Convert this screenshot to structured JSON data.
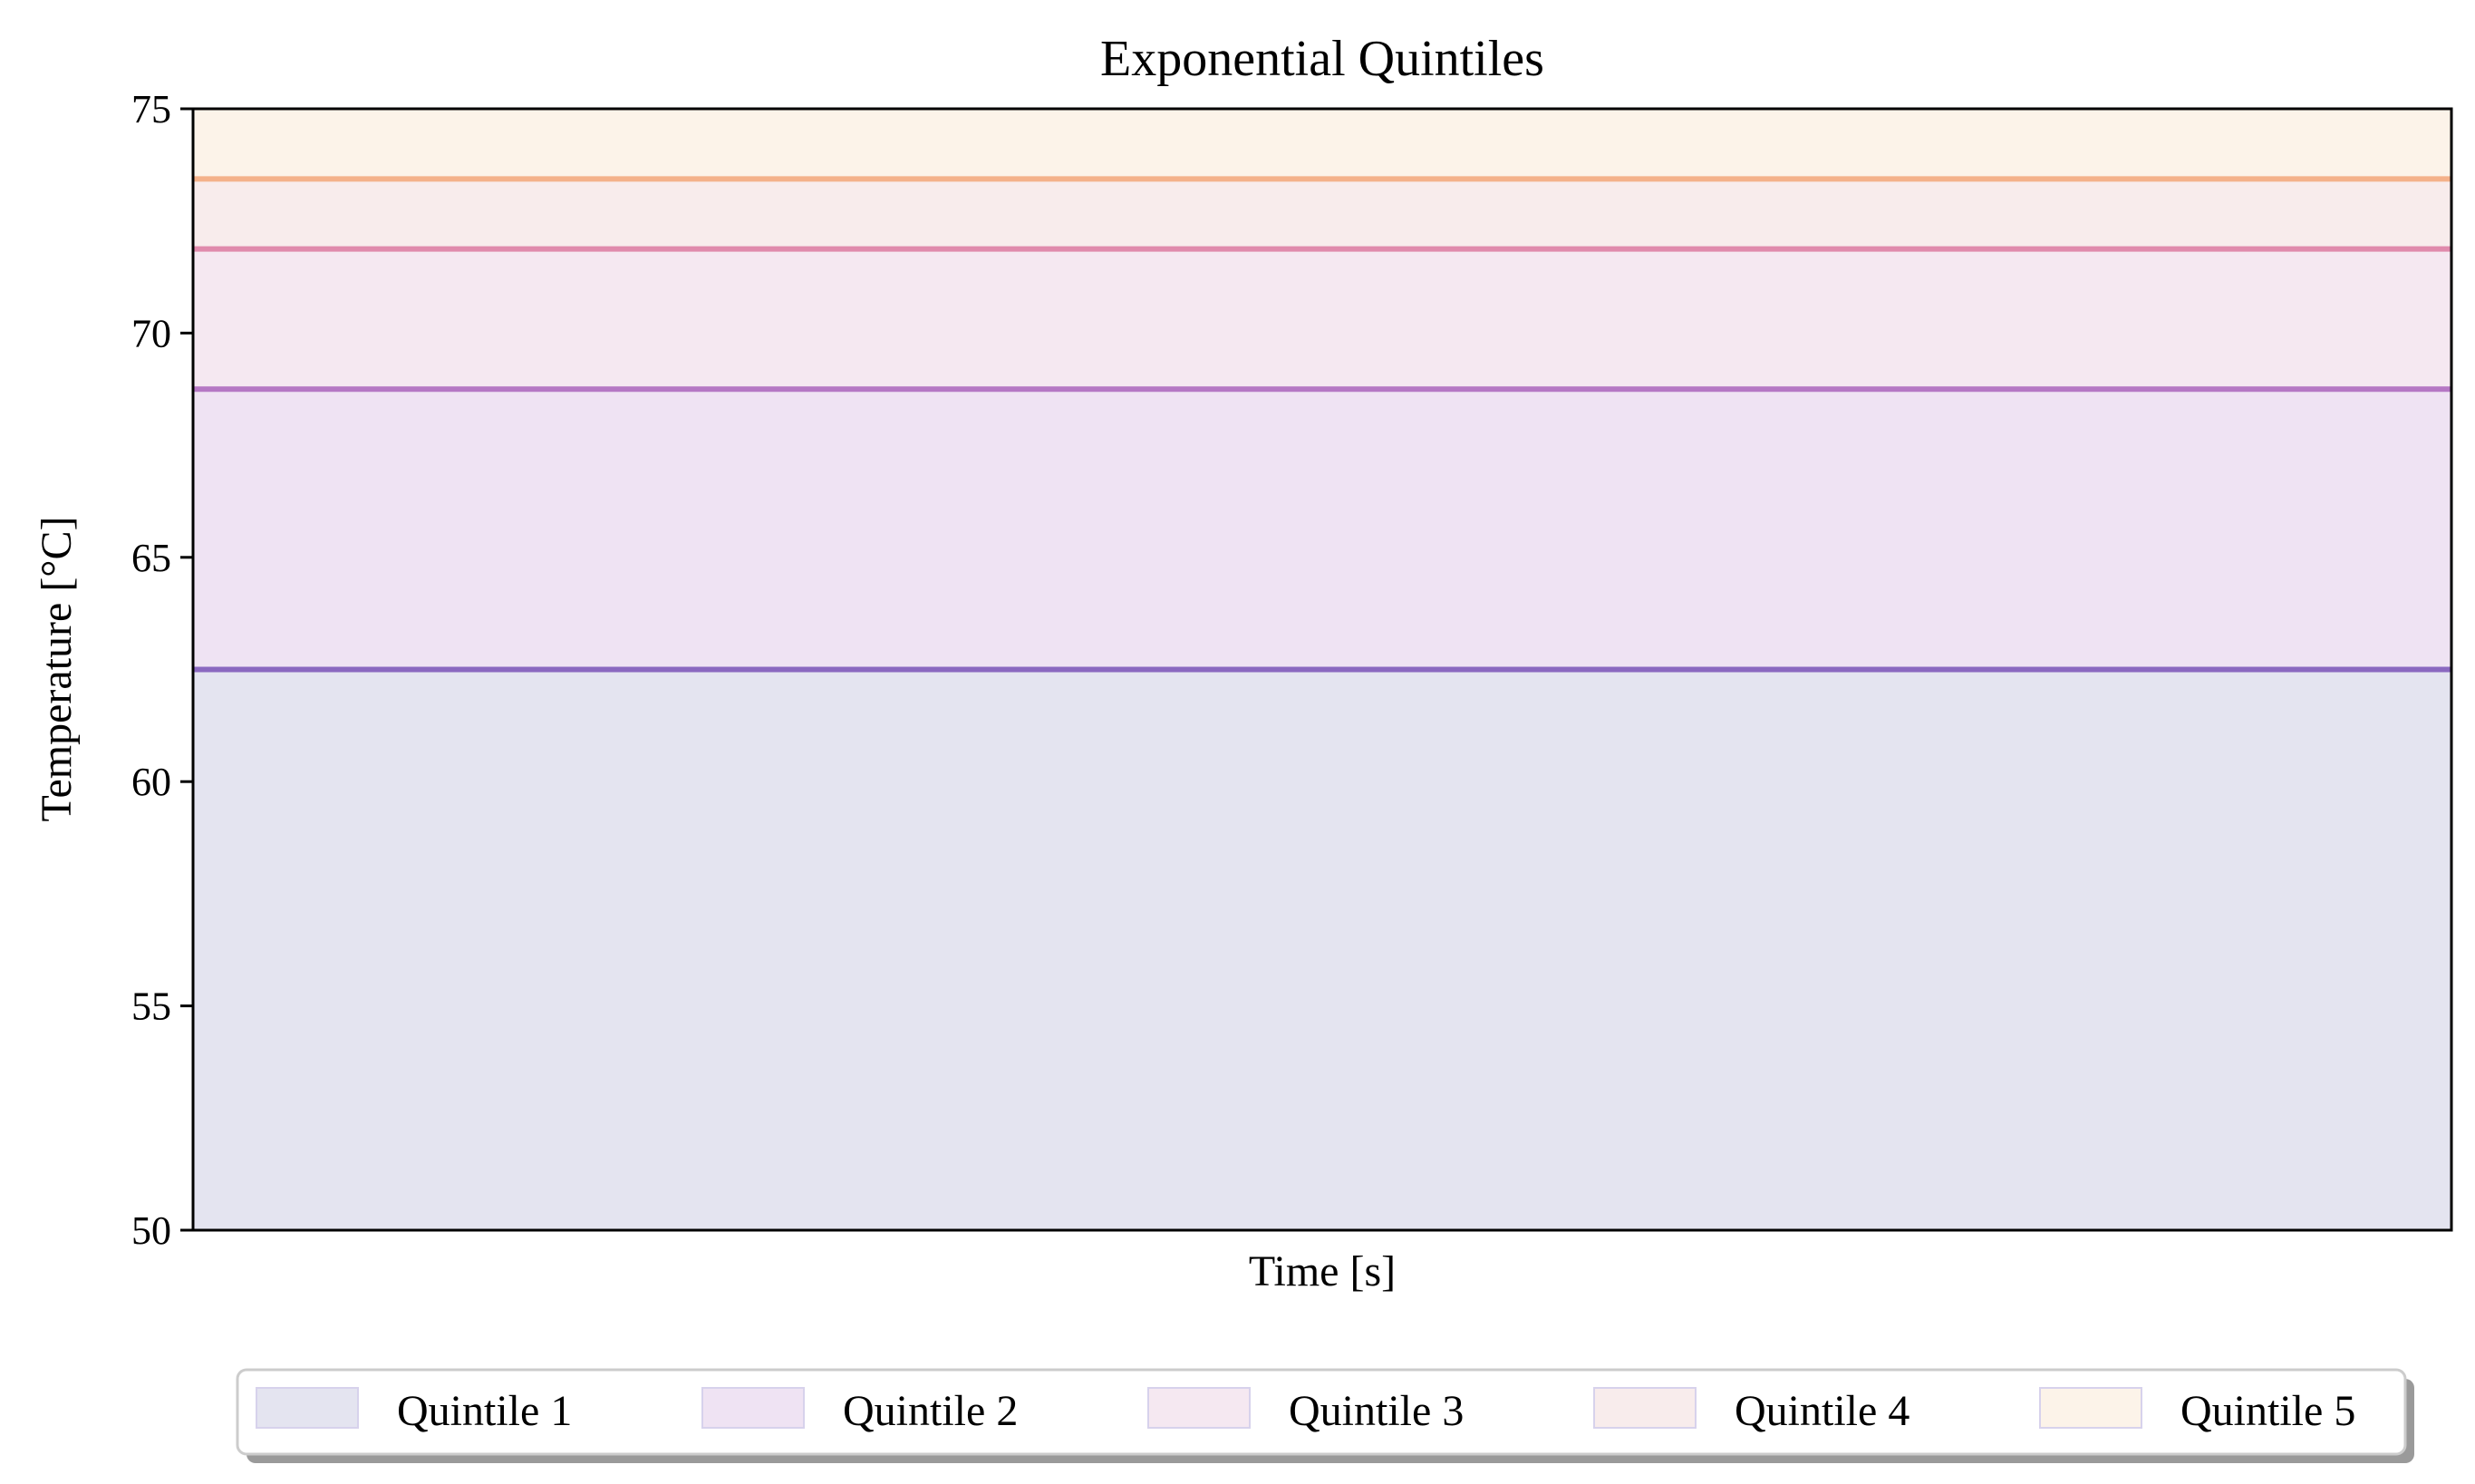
{
  "chart_data": {
    "type": "area",
    "title": "Exponential Quintiles",
    "xlabel": "Time [s]",
    "ylabel": "Temperature [$^\\circ$C]",
    "ylabel_display": "Temperature [°C]",
    "ylim": [
      50,
      75
    ],
    "yticks": [
      50,
      55,
      60,
      65,
      70,
      75
    ],
    "x_ticks_shown": false,
    "grid": false,
    "legend_position": "bottom-center",
    "series": [
      {
        "name": "Quintile 1",
        "lower": 50.0,
        "upper": 62.5,
        "fill": "#e4e4f0",
        "line": "#8a68c0"
      },
      {
        "name": "Quintile 2",
        "lower": 62.5,
        "upper": 68.75,
        "fill": "#efe3f3",
        "line": "#b577c4"
      },
      {
        "name": "Quintile 3",
        "lower": 68.75,
        "upper": 71.875,
        "fill": "#f5e8f1",
        "line": "#e08aac"
      },
      {
        "name": "Quintile 4",
        "lower": 71.875,
        "upper": 73.4375,
        "fill": "#f8ecec",
        "line": "#f4b18a"
      },
      {
        "name": "Quintile 5",
        "lower": 73.4375,
        "upper": 75.0,
        "fill": "#fcf3e9",
        "line": null
      }
    ],
    "legend_swatch_colors": [
      "#e4e4f0",
      "#efe3f3",
      "#f5e8f1",
      "#f8ecec",
      "#fcf3e9"
    ]
  }
}
